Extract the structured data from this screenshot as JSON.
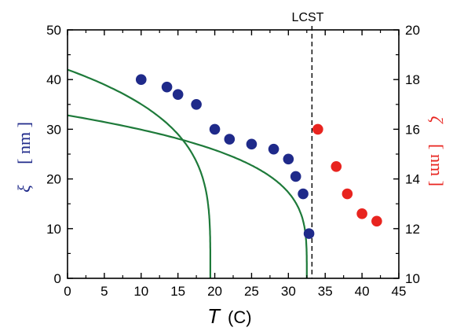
{
  "chart_data": {
    "type": "scatter",
    "annotation": "LCST",
    "xlabel": {
      "symbol": "T",
      "unit": "(C)"
    },
    "ylabel_left": {
      "symbol": "ξ",
      "unit": "[ nm ]"
    },
    "ylabel_right": {
      "symbol": "ζ",
      "unit": "[ nm ]"
    },
    "xlim": [
      0,
      45
    ],
    "ylim_left": [
      0,
      50
    ],
    "ylim_right": [
      10,
      20
    ],
    "x_ticks": [
      "0",
      "5",
      "10",
      "15",
      "20",
      "25",
      "30",
      "35",
      "40",
      "45"
    ],
    "y_ticks_left": [
      "0",
      "10",
      "20",
      "30",
      "40",
      "50"
    ],
    "y_ticks_right": [
      "10",
      "12",
      "14",
      "16",
      "18",
      "20"
    ],
    "lcst_x": 33.2,
    "colors": {
      "blue_points": "#1f2a8a",
      "red_points": "#e8241f",
      "fit_lines": "#1e7a3a"
    },
    "series": [
      {
        "axis": "left",
        "color": "#1f2a8a",
        "points": [
          [
            10,
            40
          ],
          [
            13.5,
            38.5
          ],
          [
            15,
            37
          ],
          [
            17.5,
            35
          ],
          [
            20,
            30
          ],
          [
            22,
            28
          ],
          [
            25,
            27
          ],
          [
            28,
            26
          ],
          [
            30,
            24
          ],
          [
            31,
            20.5
          ],
          [
            32,
            17
          ],
          [
            32.8,
            9
          ]
        ]
      },
      {
        "axis": "right",
        "color": "#e8241f",
        "points": [
          [
            34,
            16
          ],
          [
            36.5,
            14.5
          ],
          [
            38,
            13.4
          ],
          [
            40,
            12.6
          ],
          [
            42,
            12.3
          ]
        ]
      }
    ],
    "fit_curves": [
      {
        "axis": "left",
        "A": 42,
        "Tc": 19.4
      },
      {
        "axis": "left",
        "A": 32.8,
        "Tc": 32.5
      }
    ]
  }
}
